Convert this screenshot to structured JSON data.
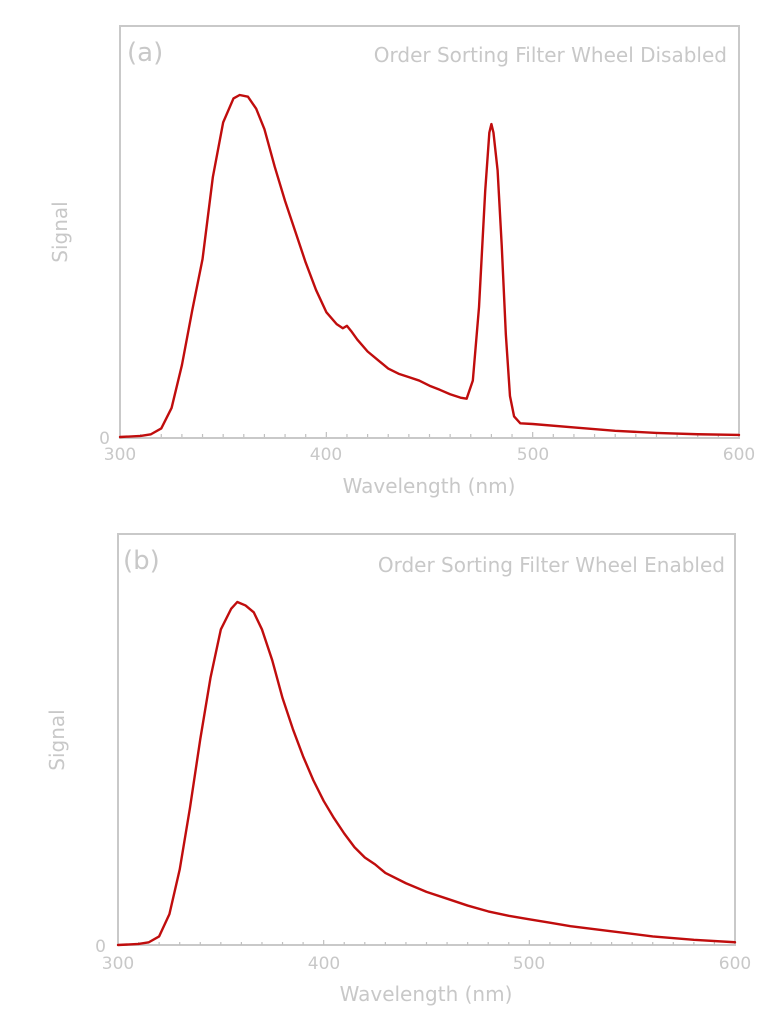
{
  "chart_data": [
    {
      "type": "line",
      "panel_label": "(a)",
      "title": "Order Sorting Filter Wheel Disabled",
      "xlabel": "Wavelength (nm)",
      "ylabel": "Signal",
      "xlim": [
        300,
        600
      ],
      "ylim": [
        0,
        1.0
      ],
      "xticks": [
        "300",
        "400",
        "500",
        "600"
      ],
      "yticks": [
        "0"
      ],
      "color": "#c00d0d",
      "series": [
        {
          "x": [
            300,
            310,
            315,
            320,
            325,
            330,
            335,
            340,
            345,
            350,
            355,
            358,
            362,
            366,
            370,
            375,
            380,
            385,
            390,
            395,
            400,
            405,
            408,
            410,
            412,
            415,
            420,
            425,
            430,
            435,
            440,
            445,
            450,
            455,
            460,
            465,
            468,
            471,
            474,
            477,
            479,
            480,
            481,
            483,
            485,
            487,
            489,
            491,
            494,
            500,
            520,
            540,
            560,
            580,
            600
          ],
          "y": [
            0,
            0.003,
            0.008,
            0.025,
            0.085,
            0.21,
            0.37,
            0.52,
            0.76,
            0.92,
            0.99,
            1.0,
            0.995,
            0.96,
            0.9,
            0.79,
            0.69,
            0.6,
            0.51,
            0.43,
            0.365,
            0.33,
            0.318,
            0.325,
            0.31,
            0.285,
            0.25,
            0.225,
            0.2,
            0.185,
            0.175,
            0.165,
            0.15,
            0.138,
            0.125,
            0.115,
            0.112,
            0.165,
            0.38,
            0.72,
            0.89,
            0.915,
            0.89,
            0.78,
            0.56,
            0.3,
            0.12,
            0.06,
            0.04,
            0.038,
            0.028,
            0.018,
            0.012,
            0.008,
            0.006
          ]
        }
      ]
    },
    {
      "type": "line",
      "panel_label": "(b)",
      "title": "Order Sorting Filter Wheel Enabled",
      "xlabel": "Wavelength (nm)",
      "ylabel": "Signal",
      "xlim": [
        300,
        600
      ],
      "ylim": [
        0,
        1.0
      ],
      "xticks": [
        "300",
        "400",
        "500",
        "600"
      ],
      "yticks": [
        "0"
      ],
      "color": "#c00d0d",
      "series": [
        {
          "x": [
            300,
            310,
            315,
            320,
            325,
            330,
            335,
            340,
            345,
            350,
            355,
            358,
            362,
            366,
            370,
            375,
            380,
            385,
            390,
            395,
            400,
            405,
            410,
            415,
            420,
            425,
            430,
            440,
            450,
            460,
            470,
            480,
            490,
            500,
            510,
            520,
            540,
            560,
            580,
            600
          ],
          "y": [
            0,
            0.003,
            0.008,
            0.025,
            0.09,
            0.22,
            0.4,
            0.6,
            0.78,
            0.92,
            0.98,
            1.0,
            0.99,
            0.97,
            0.92,
            0.83,
            0.72,
            0.63,
            0.55,
            0.48,
            0.42,
            0.37,
            0.325,
            0.285,
            0.255,
            0.235,
            0.21,
            0.18,
            0.155,
            0.135,
            0.115,
            0.098,
            0.085,
            0.075,
            0.065,
            0.055,
            0.04,
            0.025,
            0.015,
            0.008
          ]
        }
      ]
    }
  ]
}
